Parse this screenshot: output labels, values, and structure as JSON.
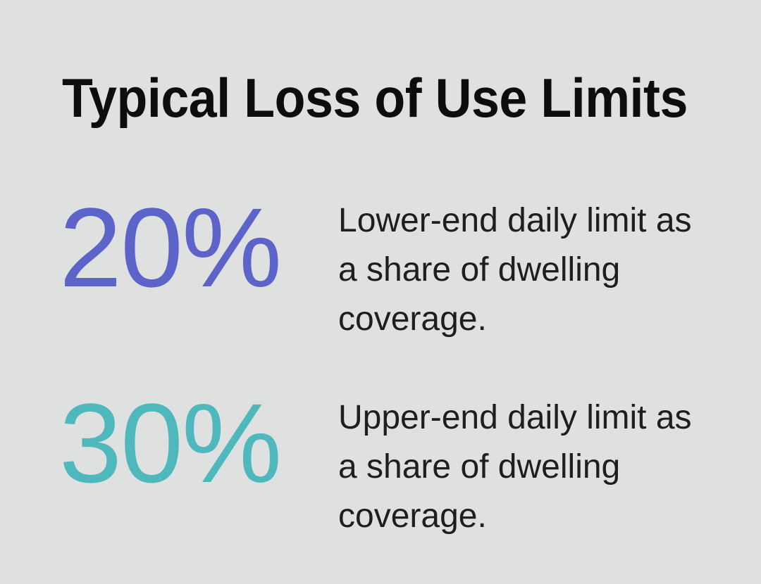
{
  "title": "Typical Loss of Use Limits",
  "colors": {
    "background": "#dfe0e0",
    "title_text": "#0d0d0d",
    "body_text": "#1e1e20",
    "stat_purple": "#5d64c9",
    "stat_teal": "#4fb8bd"
  },
  "stats": [
    {
      "value": "20%",
      "color": "#5d64c9",
      "description": "Lower-end daily limit as\na share of dwelling\ncoverage."
    },
    {
      "value": "30%",
      "color": "#4fb8bd",
      "description": "Upper-end daily limit as\na share of dwelling\ncoverage."
    }
  ],
  "chart_data": {
    "type": "table",
    "title": "Typical Loss of Use Limits",
    "categories": [
      "Lower-end daily limit as a share of dwelling coverage",
      "Upper-end daily limit as a share of dwelling coverage"
    ],
    "values": [
      20,
      30
    ],
    "unit": "%",
    "value_colors": [
      "#5d64c9",
      "#4fb8bd"
    ],
    "legend": "none",
    "grid": "off"
  }
}
